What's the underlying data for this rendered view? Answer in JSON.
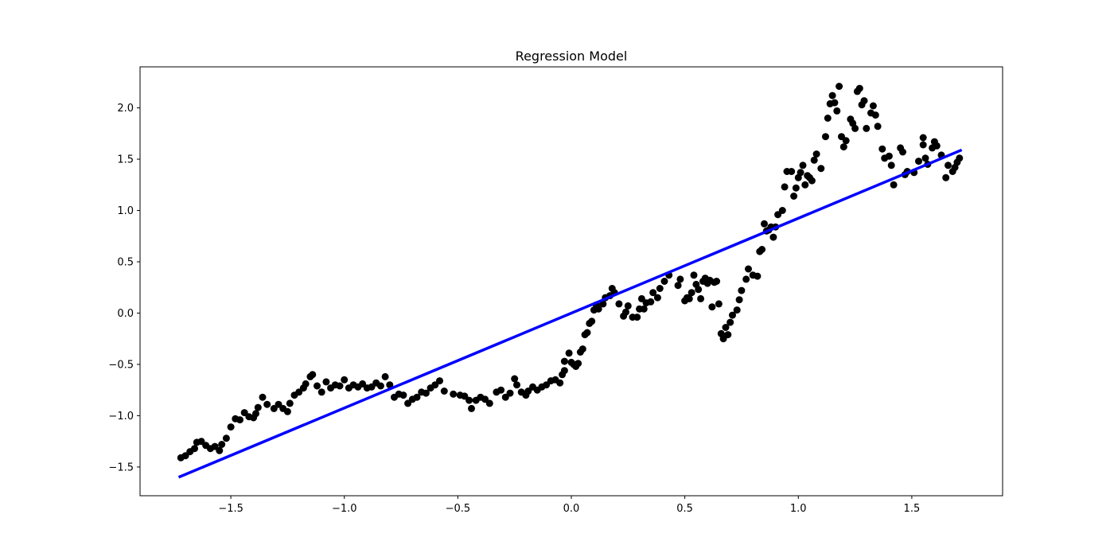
{
  "chart_data": {
    "type": "scatter",
    "title": "Regression Model",
    "xlabel": "",
    "ylabel": "",
    "xlim": [
      -1.9,
      1.9
    ],
    "ylim": [
      -1.78,
      2.4
    ],
    "xticks": [
      -1.5,
      -1.0,
      -0.5,
      0.0,
      0.5,
      1.0,
      1.5
    ],
    "xtick_labels": [
      "−1.5",
      "−1.0",
      "−0.5",
      "0.0",
      "0.5",
      "1.0",
      "1.5"
    ],
    "yticks": [
      -1.5,
      -1.0,
      -0.5,
      0.0,
      0.5,
      1.0,
      1.5,
      2.0
    ],
    "ytick_labels": [
      "−1.5",
      "−1.0",
      "−0.5",
      "0.0",
      "0.5",
      "1.0",
      "1.5",
      "2.0"
    ],
    "grid": false,
    "colors": {
      "points": "#000000",
      "line": "#0000ff"
    },
    "scatter_points": [
      [
        -1.72,
        -1.41
      ],
      [
        -1.7,
        -1.39
      ],
      [
        -1.68,
        -1.35
      ],
      [
        -1.66,
        -1.32
      ],
      [
        -1.65,
        -1.26
      ],
      [
        -1.63,
        -1.25
      ],
      [
        -1.61,
        -1.29
      ],
      [
        -1.59,
        -1.32
      ],
      [
        -1.57,
        -1.3
      ],
      [
        -1.55,
        -1.34
      ],
      [
        -1.54,
        -1.28
      ],
      [
        -1.52,
        -1.22
      ],
      [
        -1.5,
        -1.11
      ],
      [
        -1.48,
        -1.03
      ],
      [
        -1.46,
        -1.04
      ],
      [
        -1.44,
        -0.97
      ],
      [
        -1.42,
        -1.01
      ],
      [
        -1.4,
        -1.02
      ],
      [
        -1.39,
        -0.98
      ],
      [
        -1.38,
        -0.92
      ],
      [
        -1.36,
        -0.82
      ],
      [
        -1.34,
        -0.89
      ],
      [
        -1.31,
        -0.93
      ],
      [
        -1.29,
        -0.89
      ],
      [
        -1.27,
        -0.93
      ],
      [
        -1.25,
        -0.96
      ],
      [
        -1.24,
        -0.88
      ],
      [
        -1.22,
        -0.8
      ],
      [
        -1.2,
        -0.77
      ],
      [
        -1.18,
        -0.73
      ],
      [
        -1.17,
        -0.69
      ],
      [
        -1.15,
        -0.62
      ],
      [
        -1.14,
        -0.6
      ],
      [
        -1.12,
        -0.71
      ],
      [
        -1.1,
        -0.77
      ],
      [
        -1.08,
        -0.67
      ],
      [
        -1.06,
        -0.73
      ],
      [
        -1.04,
        -0.7
      ],
      [
        -1.02,
        -0.71
      ],
      [
        -1.0,
        -0.65
      ],
      [
        -0.98,
        -0.73
      ],
      [
        -0.96,
        -0.7
      ],
      [
        -0.94,
        -0.72
      ],
      [
        -0.92,
        -0.69
      ],
      [
        -0.9,
        -0.73
      ],
      [
        -0.88,
        -0.72
      ],
      [
        -0.86,
        -0.68
      ],
      [
        -0.84,
        -0.71
      ],
      [
        -0.82,
        -0.62
      ],
      [
        -0.8,
        -0.7
      ],
      [
        -0.78,
        -0.82
      ],
      [
        -0.76,
        -0.79
      ],
      [
        -0.74,
        -0.8
      ],
      [
        -0.72,
        -0.88
      ],
      [
        -0.7,
        -0.84
      ],
      [
        -0.68,
        -0.82
      ],
      [
        -0.66,
        -0.77
      ],
      [
        -0.64,
        -0.78
      ],
      [
        -0.62,
        -0.73
      ],
      [
        -0.6,
        -0.7
      ],
      [
        -0.58,
        -0.66
      ],
      [
        -0.56,
        -0.76
      ],
      [
        -0.52,
        -0.79
      ],
      [
        -0.49,
        -0.8
      ],
      [
        -0.47,
        -0.81
      ],
      [
        -0.45,
        -0.85
      ],
      [
        -0.44,
        -0.93
      ],
      [
        -0.42,
        -0.85
      ],
      [
        -0.4,
        -0.82
      ],
      [
        -0.38,
        -0.84
      ],
      [
        -0.36,
        -0.88
      ],
      [
        -0.33,
        -0.77
      ],
      [
        -0.31,
        -0.75
      ],
      [
        -0.29,
        -0.82
      ],
      [
        -0.27,
        -0.78
      ],
      [
        -0.25,
        -0.64
      ],
      [
        -0.24,
        -0.7
      ],
      [
        -0.22,
        -0.77
      ],
      [
        -0.2,
        -0.8
      ],
      [
        -0.19,
        -0.76
      ],
      [
        -0.17,
        -0.72
      ],
      [
        -0.15,
        -0.75
      ],
      [
        -0.13,
        -0.72
      ],
      [
        -0.11,
        -0.7
      ],
      [
        -0.09,
        -0.66
      ],
      [
        -0.07,
        -0.65
      ],
      [
        -0.05,
        -0.68
      ],
      [
        -0.04,
        -0.6
      ],
      [
        -0.03,
        -0.56
      ],
      [
        -0.03,
        -0.47
      ],
      [
        -0.01,
        -0.39
      ],
      [
        0.0,
        -0.48
      ],
      [
        0.01,
        -0.5
      ],
      [
        0.02,
        -0.52
      ],
      [
        0.03,
        -0.49
      ],
      [
        0.04,
        -0.38
      ],
      [
        0.05,
        -0.35
      ],
      [
        0.06,
        -0.21
      ],
      [
        0.07,
        -0.19
      ],
      [
        0.08,
        -0.1
      ],
      [
        0.09,
        -0.08
      ],
      [
        0.1,
        0.03
      ],
      [
        0.11,
        0.08
      ],
      [
        0.12,
        0.04
      ],
      [
        0.14,
        0.09
      ],
      [
        0.15,
        0.15
      ],
      [
        0.17,
        0.17
      ],
      [
        0.18,
        0.24
      ],
      [
        0.19,
        0.2
      ],
      [
        0.21,
        0.09
      ],
      [
        0.23,
        -0.03
      ],
      [
        0.24,
        0.01
      ],
      [
        0.25,
        0.07
      ],
      [
        0.27,
        -0.04
      ],
      [
        0.29,
        -0.04
      ],
      [
        0.3,
        0.04
      ],
      [
        0.31,
        0.14
      ],
      [
        0.32,
        0.04
      ],
      [
        0.33,
        0.1
      ],
      [
        0.35,
        0.11
      ],
      [
        0.36,
        0.2
      ],
      [
        0.38,
        0.15
      ],
      [
        0.39,
        0.24
      ],
      [
        0.41,
        0.31
      ],
      [
        0.43,
        0.37
      ],
      [
        0.47,
        0.27
      ],
      [
        0.48,
        0.33
      ],
      [
        0.5,
        0.12
      ],
      [
        0.51,
        0.15
      ],
      [
        0.52,
        0.14
      ],
      [
        0.53,
        0.2
      ],
      [
        0.54,
        0.37
      ],
      [
        0.55,
        0.28
      ],
      [
        0.56,
        0.23
      ],
      [
        0.57,
        0.14
      ],
      [
        0.58,
        0.31
      ],
      [
        0.59,
        0.34
      ],
      [
        0.6,
        0.29
      ],
      [
        0.61,
        0.32
      ],
      [
        0.62,
        0.06
      ],
      [
        0.63,
        0.3
      ],
      [
        0.64,
        0.31
      ],
      [
        0.65,
        0.09
      ],
      [
        0.66,
        -0.2
      ],
      [
        0.67,
        -0.25
      ],
      [
        0.68,
        -0.14
      ],
      [
        0.69,
        -0.21
      ],
      [
        0.7,
        -0.09
      ],
      [
        0.71,
        -0.02
      ],
      [
        0.73,
        0.03
      ],
      [
        0.74,
        0.13
      ],
      [
        0.75,
        0.22
      ],
      [
        0.77,
        0.33
      ],
      [
        0.78,
        0.43
      ],
      [
        0.8,
        0.37
      ],
      [
        0.82,
        0.36
      ],
      [
        0.83,
        0.6
      ],
      [
        0.84,
        0.62
      ],
      [
        0.85,
        0.87
      ],
      [
        0.86,
        0.8
      ],
      [
        0.87,
        0.81
      ],
      [
        0.88,
        0.84
      ],
      [
        0.89,
        0.74
      ],
      [
        0.9,
        0.84
      ],
      [
        0.91,
        0.96
      ],
      [
        0.93,
        1.0
      ],
      [
        0.94,
        1.23
      ],
      [
        0.95,
        1.38
      ],
      [
        0.97,
        1.38
      ],
      [
        0.98,
        1.14
      ],
      [
        0.99,
        1.22
      ],
      [
        1.0,
        1.32
      ],
      [
        1.01,
        1.37
      ],
      [
        1.02,
        1.44
      ],
      [
        1.03,
        1.25
      ],
      [
        1.04,
        1.34
      ],
      [
        1.05,
        1.32
      ],
      [
        1.06,
        1.29
      ],
      [
        1.07,
        1.49
      ],
      [
        1.08,
        1.55
      ],
      [
        1.1,
        1.41
      ],
      [
        1.12,
        1.72
      ],
      [
        1.13,
        1.9
      ],
      [
        1.14,
        2.04
      ],
      [
        1.15,
        2.12
      ],
      [
        1.16,
        2.05
      ],
      [
        1.17,
        1.97
      ],
      [
        1.18,
        2.21
      ],
      [
        1.19,
        1.72
      ],
      [
        1.2,
        1.62
      ],
      [
        1.21,
        1.68
      ],
      [
        1.23,
        1.89
      ],
      [
        1.24,
        1.85
      ],
      [
        1.25,
        1.8
      ],
      [
        1.26,
        2.16
      ],
      [
        1.27,
        2.19
      ],
      [
        1.28,
        2.03
      ],
      [
        1.29,
        2.07
      ],
      [
        1.3,
        1.8
      ],
      [
        1.32,
        1.95
      ],
      [
        1.33,
        2.02
      ],
      [
        1.34,
        1.93
      ],
      [
        1.35,
        1.82
      ],
      [
        1.37,
        1.6
      ],
      [
        1.38,
        1.51
      ],
      [
        1.4,
        1.53
      ],
      [
        1.41,
        1.44
      ],
      [
        1.42,
        1.25
      ],
      [
        1.45,
        1.61
      ],
      [
        1.46,
        1.57
      ],
      [
        1.47,
        1.35
      ],
      [
        1.48,
        1.38
      ],
      [
        1.51,
        1.37
      ],
      [
        1.53,
        1.48
      ],
      [
        1.55,
        1.71
      ],
      [
        1.55,
        1.64
      ],
      [
        1.56,
        1.51
      ],
      [
        1.57,
        1.45
      ],
      [
        1.59,
        1.61
      ],
      [
        1.6,
        1.67
      ],
      [
        1.61,
        1.63
      ],
      [
        1.63,
        1.54
      ],
      [
        1.65,
        1.32
      ],
      [
        1.66,
        1.44
      ],
      [
        1.68,
        1.38
      ],
      [
        1.69,
        1.42
      ],
      [
        1.7,
        1.47
      ],
      [
        1.71,
        1.51
      ]
    ],
    "regression_line": {
      "x": [
        -1.73,
        1.72
      ],
      "y": [
        -1.6,
        1.59
      ]
    }
  }
}
